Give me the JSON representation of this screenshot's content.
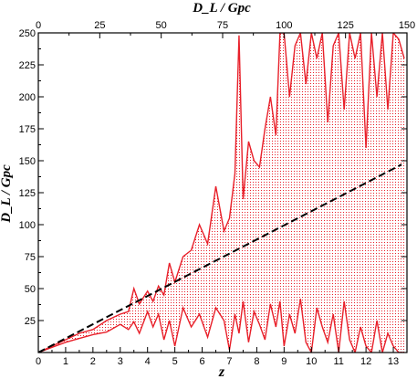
{
  "chart_data": {
    "type": "area",
    "xlabel": "z",
    "ylabel": "D_L / Gpc",
    "x2label": "D_L / Gpc",
    "xlim": [
      0,
      13.5
    ],
    "ylim": [
      0,
      250
    ],
    "x2lim": [
      0,
      150
    ],
    "x_ticks": [
      0,
      1,
      2,
      3,
      4,
      5,
      6,
      7,
      8,
      9,
      10,
      11,
      12,
      13
    ],
    "y_ticks": [
      25,
      50,
      75,
      100,
      125,
      150,
      175,
      200,
      225,
      250
    ],
    "x2_ticks": [
      0,
      25,
      50,
      75,
      100,
      125,
      150
    ],
    "x_tick_labels": [
      "0",
      "1",
      "2",
      "3",
      "4",
      "5",
      "6",
      "7",
      "8",
      "9",
      "10",
      "11",
      "12",
      "13"
    ],
    "y_tick_labels": [
      "25",
      "50",
      "75",
      "100",
      "125",
      "150",
      "175",
      "200",
      "225",
      "250"
    ],
    "x2_tick_labels": [
      "0",
      "25",
      "50",
      "75",
      "100",
      "125",
      "150"
    ],
    "grid": false,
    "colors": {
      "band": "#e8202a",
      "fill": "#f4a6a6",
      "reference": "#000000"
    },
    "series": [
      {
        "role": "upper-bound",
        "style": "solid-red",
        "x": [
          0,
          0.5,
          1.0,
          1.5,
          2.0,
          2.5,
          3.0,
          3.3,
          3.5,
          3.7,
          4.0,
          4.2,
          4.4,
          4.6,
          4.8,
          5.0,
          5.3,
          5.6,
          5.9,
          6.2,
          6.5,
          6.8,
          7.0,
          7.2,
          7.35,
          7.5,
          7.7,
          7.9,
          8.1,
          8.3,
          8.5,
          8.7,
          8.85,
          9.0,
          9.2,
          9.4,
          9.6,
          9.8,
          10.0,
          10.2,
          10.4,
          10.6,
          10.8,
          11.0,
          11.2,
          11.4,
          11.6,
          11.8,
          12.0,
          12.2,
          12.4,
          12.6,
          12.8,
          13.0,
          13.2,
          13.4
        ],
        "y": [
          0,
          5,
          10,
          15,
          18,
          25,
          30,
          32,
          50,
          38,
          48,
          40,
          52,
          45,
          70,
          55,
          75,
          80,
          100,
          85,
          130,
          95,
          105,
          140,
          248,
          120,
          165,
          150,
          145,
          175,
          200,
          170,
          250,
          250,
          200,
          240,
          250,
          210,
          250,
          230,
          250,
          180,
          240,
          250,
          190,
          250,
          230,
          250,
          160,
          250,
          200,
          250,
          190,
          250,
          245,
          230
        ]
      },
      {
        "role": "lower-bound",
        "style": "solid-red",
        "x": [
          0,
          0.5,
          1.0,
          1.5,
          2.0,
          2.5,
          3.0,
          3.3,
          3.5,
          3.7,
          4.0,
          4.2,
          4.4,
          4.6,
          4.8,
          5.0,
          5.3,
          5.6,
          5.9,
          6.2,
          6.5,
          6.8,
          7.0,
          7.2,
          7.35,
          7.5,
          7.7,
          7.9,
          8.1,
          8.3,
          8.5,
          8.7,
          8.85,
          9.0,
          9.2,
          9.4,
          9.6,
          9.8,
          10.0,
          10.2,
          10.4,
          10.6,
          10.8,
          11.0,
          11.2,
          11.4,
          11.6,
          11.8,
          12.0,
          12.2,
          12.4,
          12.6,
          12.8,
          13.0,
          13.2,
          13.4
        ],
        "y": [
          0,
          4,
          8,
          11,
          14,
          16,
          22,
          18,
          24,
          15,
          32,
          20,
          30,
          10,
          25,
          5,
          35,
          20,
          30,
          12,
          35,
          25,
          2,
          30,
          15,
          40,
          8,
          32,
          22,
          10,
          38,
          20,
          40,
          5,
          30,
          15,
          42,
          8,
          0,
          35,
          20,
          8,
          30,
          0,
          40,
          10,
          0,
          20,
          5,
          0,
          25,
          0,
          15,
          5,
          0,
          0
        ]
      },
      {
        "role": "reference",
        "style": "dashed-black",
        "x": [
          0,
          13.3
        ],
        "y": [
          0,
          147
        ]
      }
    ]
  }
}
